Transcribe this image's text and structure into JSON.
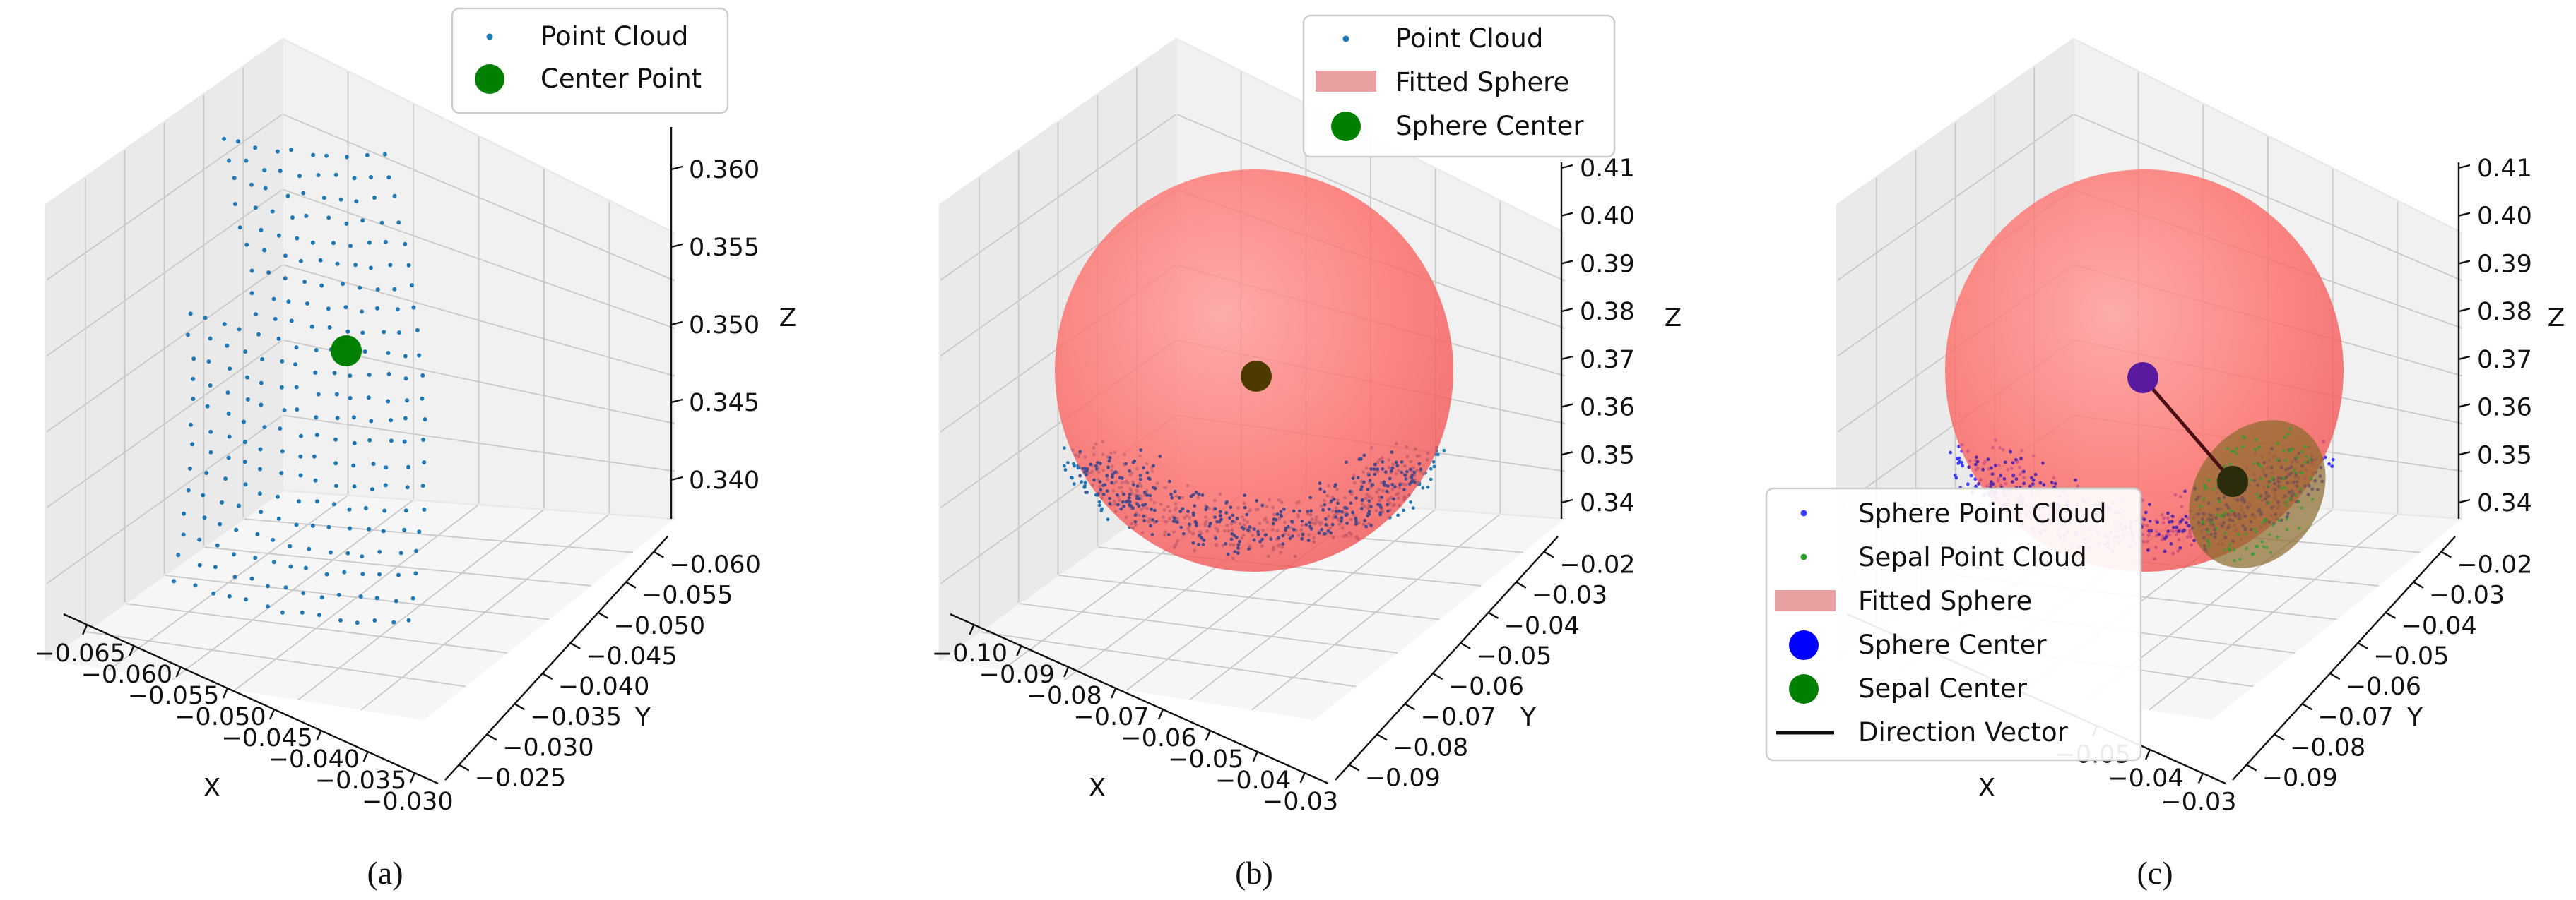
{
  "figure": {
    "captions": [
      "(a)",
      "(b)",
      "(c)"
    ]
  },
  "chart_data": [
    {
      "type": "scatter",
      "panel": "(a)",
      "xlabel": "X",
      "ylabel": "Y",
      "zlabel": "Z",
      "x_ticks": [
        "−0.065",
        "−0.060",
        "−0.055",
        "−0.050",
        "−0.045",
        "−0.040",
        "−0.035",
        "−0.030"
      ],
      "y_ticks": [
        "−0.060",
        "−0.055",
        "−0.050",
        "−0.045",
        "−0.040",
        "−0.035",
        "−0.030",
        "−0.025"
      ],
      "z_ticks": [
        "0.340",
        "0.345",
        "0.350",
        "0.355",
        "0.360"
      ],
      "xlim": [
        -0.066,
        -0.029
      ],
      "ylim": [
        -0.061,
        -0.024
      ],
      "zlim": [
        0.336,
        0.362
      ],
      "grid": true,
      "legend_position": "top-right",
      "legend": [
        {
          "label": "Point Cloud",
          "marker": "dot",
          "color": "#1f77b4"
        },
        {
          "label": "Center Point",
          "marker": "big-dot",
          "color": "#008000"
        }
      ],
      "series": [
        {
          "name": "Point Cloud",
          "kind": "points",
          "color": "#1f77b4",
          "shape": "curved-surface",
          "extent": {
            "x": [
              -0.062,
              -0.033
            ],
            "y": [
              -0.056,
              -0.03
            ],
            "z": [
              0.338,
              0.361
            ]
          }
        },
        {
          "name": "Center Point",
          "kind": "point",
          "color": "#008000",
          "x": -0.0475,
          "y": -0.043,
          "z": 0.35
        }
      ]
    },
    {
      "type": "scatter",
      "panel": "(b)",
      "xlabel": "X",
      "ylabel": "Y",
      "zlabel": "Z",
      "x_ticks": [
        "−0.10",
        "−0.09",
        "−0.08",
        "−0.07",
        "−0.06",
        "−0.05",
        "−0.04",
        "−0.03"
      ],
      "y_ticks": [
        "−0.09",
        "−0.08",
        "−0.07",
        "−0.06",
        "−0.05",
        "−0.04",
        "−0.03",
        "−0.02"
      ],
      "z_ticks": [
        "0.34",
        "0.35",
        "0.36",
        "0.37",
        "0.38",
        "0.39",
        "0.40",
        "0.41"
      ],
      "xlim": [
        -0.102,
        -0.028
      ],
      "ylim": [
        -0.092,
        -0.018
      ],
      "zlim": [
        0.332,
        0.412
      ],
      "grid": true,
      "legend_position": "top-right",
      "legend": [
        {
          "label": "Point Cloud",
          "marker": "dot",
          "color": "#1f77b4"
        },
        {
          "label": "Fitted Sphere",
          "marker": "patch",
          "color": "#e8a0a0"
        },
        {
          "label": "Sphere Center",
          "marker": "big-dot",
          "color": "#008000"
        }
      ],
      "series": [
        {
          "name": "Point Cloud",
          "kind": "points",
          "color": "#1f77b4",
          "shape": "bowl",
          "extent": {
            "z": [
              0.333,
              0.362
            ]
          }
        },
        {
          "name": "Fitted Sphere",
          "kind": "sphere",
          "color": "#ff3b30",
          "alpha": 0.6,
          "center": {
            "x": -0.065,
            "y": -0.055,
            "z": 0.37
          },
          "radius": 0.037
        },
        {
          "name": "Sphere Center",
          "kind": "point",
          "color": "#008000",
          "x": -0.065,
          "y": -0.055,
          "z": 0.37
        }
      ]
    },
    {
      "type": "scatter",
      "panel": "(c)",
      "xlabel": "X",
      "ylabel": "Y",
      "zlabel": "Z",
      "x_ticks": [
        "−0.05",
        "−0.04",
        "−0.03"
      ],
      "y_ticks": [
        "−0.09",
        "−0.08",
        "−0.07",
        "−0.06",
        "−0.05",
        "−0.04",
        "−0.03",
        "−0.02"
      ],
      "z_ticks": [
        "0.34",
        "0.35",
        "0.36",
        "0.37",
        "0.38",
        "0.39",
        "0.40",
        "0.41"
      ],
      "xlim": [
        -0.102,
        -0.028
      ],
      "ylim": [
        -0.092,
        -0.018
      ],
      "zlim": [
        0.332,
        0.412
      ],
      "grid": true,
      "legend_position": "lower-left",
      "legend": [
        {
          "label": "Sphere Point Cloud",
          "marker": "dot",
          "color": "#3b3bff"
        },
        {
          "label": "Sepal Point Cloud",
          "marker": "dot",
          "color": "#2ca02c"
        },
        {
          "label": "Fitted Sphere",
          "marker": "patch",
          "color": "#e8a0a0"
        },
        {
          "label": "Sphere Center",
          "marker": "big-dot",
          "color": "#0000ff"
        },
        {
          "label": "Sepal Center",
          "marker": "big-dot",
          "color": "#008000"
        },
        {
          "label": "Direction Vector",
          "marker": "line",
          "color": "#111111"
        }
      ],
      "series": [
        {
          "name": "Sphere Point Cloud",
          "kind": "points",
          "color": "#3b3bff",
          "shape": "bowl"
        },
        {
          "name": "Sepal Point Cloud",
          "kind": "points",
          "color": "#2ca02c",
          "shape": "patch"
        },
        {
          "name": "Fitted Sphere",
          "kind": "sphere",
          "color": "#ff3b30",
          "alpha": 0.6,
          "center": {
            "x": -0.065,
            "y": -0.055,
            "z": 0.37
          },
          "radius": 0.037
        },
        {
          "name": "Sphere Center",
          "kind": "point",
          "color": "#0000ff",
          "x": -0.065,
          "y": -0.055,
          "z": 0.37
        },
        {
          "name": "Sepal Center",
          "kind": "point",
          "color": "#008000",
          "x": -0.045,
          "y": -0.045,
          "z": 0.345
        },
        {
          "name": "Direction Vector",
          "kind": "segment",
          "color": "#111111",
          "from": "Sphere Center",
          "to": "Sepal Center"
        }
      ]
    }
  ]
}
